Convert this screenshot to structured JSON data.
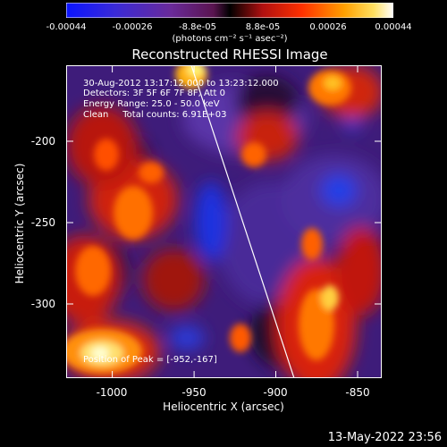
{
  "colorbar": {
    "tick_labels": [
      "-0.00044",
      "-0.00026",
      "-8.8e-05",
      "8.8e-05",
      "0.00026",
      "0.00044"
    ],
    "units": "(photons cm⁻² s⁻¹ asec⁻²)",
    "vmin": -0.00044,
    "vmax": 0.00044
  },
  "title": "Reconstructed RHESSI Image",
  "info": {
    "time_range": "30-Aug-2012 13:17:12.000 to 13:23:12.000",
    "detectors": "Detectors: 3F 5F 6F 7F 8F, Att 0",
    "energy": "Energy Range: 25.0 - 50.0 keV",
    "clean": "Clean     Total counts: 6.91E+03",
    "peak": "Position of Peak = [-952,-167]"
  },
  "axes": {
    "xlabel": "Heliocentric X (arcsec)",
    "ylabel": "Heliocentric Y (arcsec)",
    "x_ticks": [
      "-1000",
      "-950",
      "-900",
      "-850"
    ],
    "y_ticks": [
      "-200",
      "-250",
      "-300"
    ],
    "xlim": [
      -1025,
      -832
    ],
    "ylim": [
      -345,
      -153
    ]
  },
  "timestamp": "13-May-2022 23:56"
}
